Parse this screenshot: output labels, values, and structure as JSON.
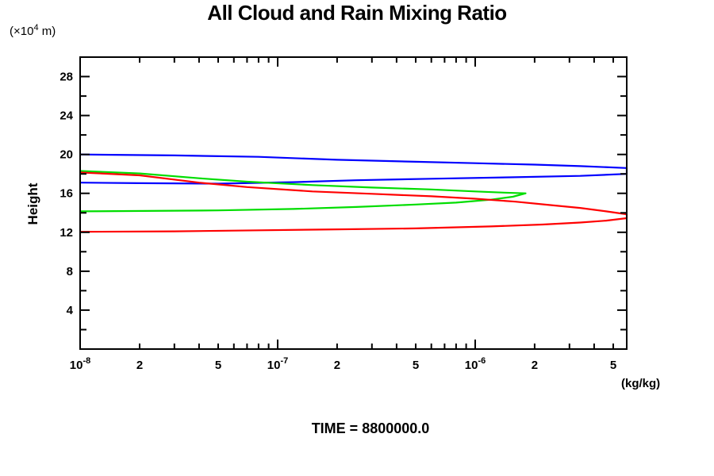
{
  "header": {
    "title": "All Cloud and Rain Mixing Ratio"
  },
  "axes": {
    "y_units_prefix": "(×10",
    "y_units_sup": "4",
    "y_units_suffix": " m)",
    "y_label": "Height",
    "x_units": "(kg/kg)"
  },
  "footer": {
    "time_label": "TIME = 8800000.0"
  },
  "chart_data": {
    "type": "line",
    "title": "All Cloud and Rain Mixing Ratio",
    "xlabel": "(kg/kg)",
    "ylabel": "Height (x10^4 m)",
    "x_scale": "log",
    "xlim": [
      1e-08,
      5.85e-06
    ],
    "ylim": [
      0,
      30
    ],
    "grid": false,
    "legend": "none",
    "x_decades": [
      1e-08,
      1e-07,
      1e-06
    ],
    "x_tick_labels": [
      {
        "v": 1e-08,
        "base": "10",
        "exp": "-8"
      },
      {
        "v": 2e-08,
        "base": "2",
        "exp": ""
      },
      {
        "v": 5e-08,
        "base": "5",
        "exp": ""
      },
      {
        "v": 1e-07,
        "base": "10",
        "exp": "-7"
      },
      {
        "v": 2e-07,
        "base": "2",
        "exp": ""
      },
      {
        "v": 5e-07,
        "base": "5",
        "exp": ""
      },
      {
        "v": 1e-06,
        "base": "10",
        "exp": "-6"
      },
      {
        "v": 2e-06,
        "base": "2",
        "exp": ""
      },
      {
        "v": 5e-06,
        "base": "5",
        "exp": ""
      }
    ],
    "y_tick_minor_step": 2,
    "y_tick_labels": [
      4,
      8,
      12,
      16,
      20,
      24,
      28
    ],
    "annotation": "TIME = 8800000.0",
    "series": [
      {
        "name": "blue-profile",
        "color": "#0000ff",
        "clipped_at_xmax": true,
        "points": [
          [
            1e-08,
            20.0
          ],
          [
            3e-08,
            19.9
          ],
          [
            8e-08,
            19.75
          ],
          [
            2e-07,
            19.45
          ],
          [
            5e-07,
            19.25
          ],
          [
            1e-06,
            19.1
          ],
          [
            2e-06,
            18.95
          ],
          [
            3.4e-06,
            18.8
          ],
          [
            5.85e-06,
            18.6
          ],
          [
            5.85e-06,
            18.0
          ],
          [
            3.4e-06,
            17.8
          ],
          [
            1.5e-06,
            17.65
          ],
          [
            6e-07,
            17.5
          ],
          [
            2.5e-07,
            17.35
          ],
          [
            1.2e-07,
            17.15
          ],
          [
            5e-08,
            17.0
          ],
          [
            2e-08,
            17.05
          ],
          [
            1e-08,
            17.1
          ]
        ]
      },
      {
        "name": "green-profile",
        "color": "#00dd00",
        "clipped_at_xmax": false,
        "points": [
          [
            1e-08,
            18.3
          ],
          [
            2e-08,
            18.05
          ],
          [
            4e-08,
            17.55
          ],
          [
            7e-08,
            17.2
          ],
          [
            1.5e-07,
            16.85
          ],
          [
            3e-07,
            16.6
          ],
          [
            6e-07,
            16.4
          ],
          [
            1e-06,
            16.2
          ],
          [
            1.4e-06,
            16.08
          ],
          [
            1.8e-06,
            16.0
          ],
          [
            1.55e-06,
            15.65
          ],
          [
            1.2e-06,
            15.35
          ],
          [
            8e-07,
            15.05
          ],
          [
            5e-07,
            14.85
          ],
          [
            2.5e-07,
            14.6
          ],
          [
            1.2e-07,
            14.4
          ],
          [
            5e-08,
            14.25
          ],
          [
            1e-08,
            14.15
          ]
        ]
      },
      {
        "name": "red-profile",
        "color": "#ff0000",
        "clipped_at_xmax": true,
        "points": [
          [
            1e-08,
            18.15
          ],
          [
            2e-08,
            17.85
          ],
          [
            4e-08,
            17.1
          ],
          [
            7e-08,
            16.65
          ],
          [
            1.5e-07,
            16.2
          ],
          [
            3e-07,
            15.95
          ],
          [
            6e-07,
            15.7
          ],
          [
            1e-06,
            15.45
          ],
          [
            1.6e-06,
            15.15
          ],
          [
            2.4e-06,
            14.8
          ],
          [
            3.4e-06,
            14.5
          ],
          [
            4.6e-06,
            14.15
          ],
          [
            5.85e-06,
            13.85
          ],
          [
            5.85e-06,
            13.45
          ],
          [
            4.6e-06,
            13.2
          ],
          [
            3.4e-06,
            13.0
          ],
          [
            2.2e-06,
            12.8
          ],
          [
            1.2e-06,
            12.6
          ],
          [
            5e-07,
            12.4
          ],
          [
            2e-07,
            12.3
          ],
          [
            8e-08,
            12.2
          ],
          [
            3e-08,
            12.1
          ],
          [
            1e-08,
            12.05
          ]
        ]
      }
    ]
  }
}
